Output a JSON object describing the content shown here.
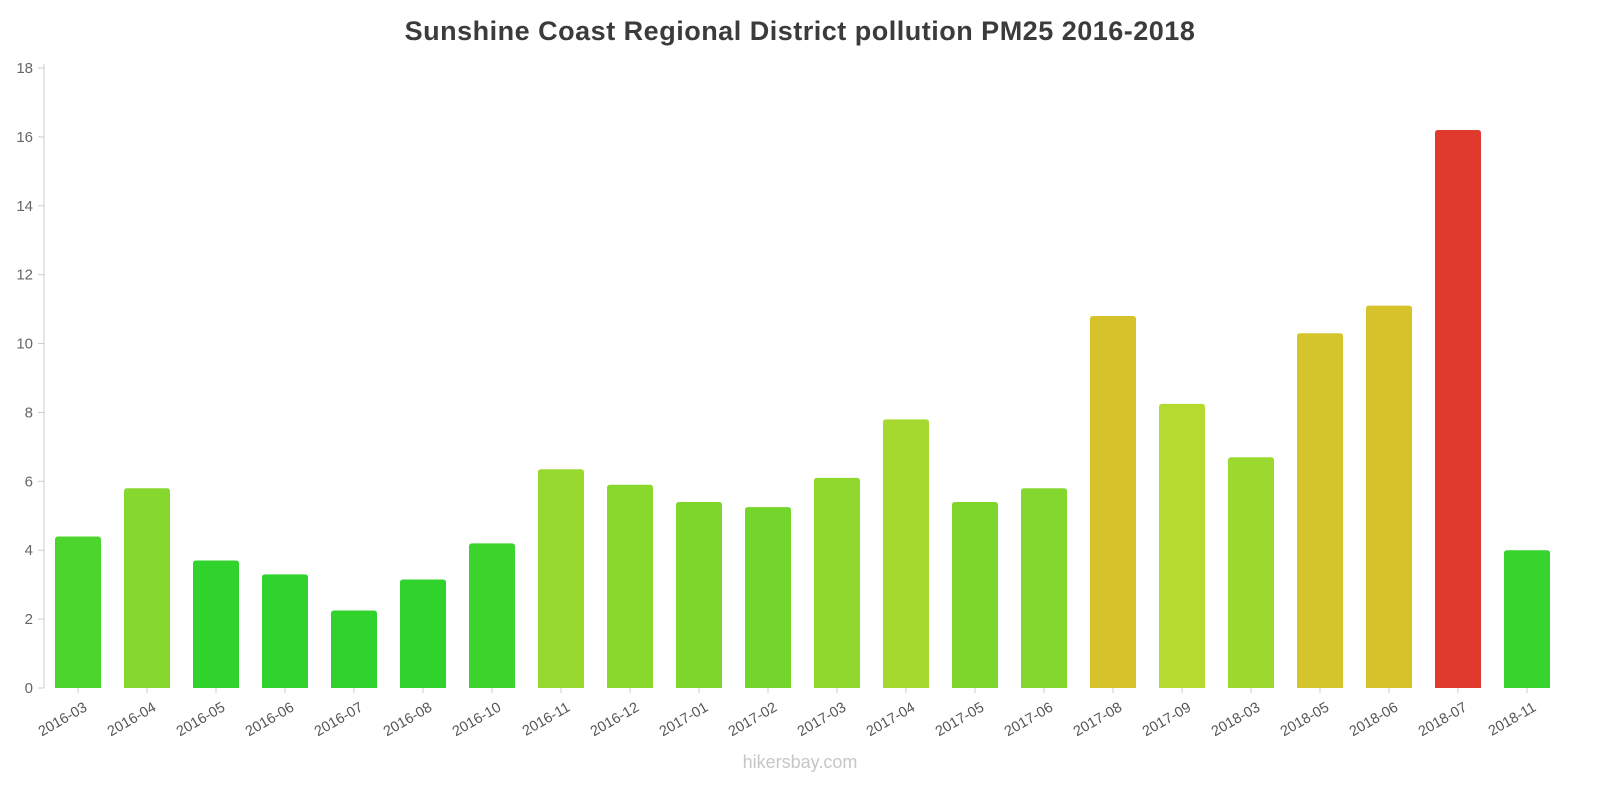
{
  "page": {
    "title": "Sunshine Coast Regional District pollution PM25 2016-2018",
    "footer": "hikersbay.com"
  },
  "chart_data": {
    "type": "bar",
    "title": "Sunshine Coast Regional District pollution PM25 2016-2018",
    "xlabel": "",
    "ylabel": "",
    "ylim": [
      0,
      18
    ],
    "yticks": [
      0,
      2,
      4,
      6,
      8,
      10,
      12,
      14,
      16,
      18
    ],
    "grid": false,
    "legend": "none",
    "x_label_rotation": -30,
    "categories": [
      "2016-03",
      "2016-04",
      "2016-05",
      "2016-06",
      "2016-07",
      "2016-08",
      "2016-10",
      "2016-11",
      "2016-12",
      "2017-01",
      "2017-02",
      "2017-03",
      "2017-04",
      "2017-05",
      "2017-06",
      "2017-08",
      "2017-09",
      "2018-03",
      "2018-05",
      "2018-06",
      "2018-07",
      "2018-11"
    ],
    "values": [
      4.4,
      5.8,
      3.7,
      3.3,
      2.25,
      3.15,
      4.2,
      6.35,
      5.9,
      5.4,
      5.25,
      6.1,
      7.8,
      5.4,
      5.8,
      10.8,
      8.25,
      6.7,
      10.3,
      11.1,
      16.2,
      4.0
    ],
    "bar_colors": [
      "#4cd52c",
      "#86d72e",
      "#2fd32b",
      "#2fd32b",
      "#2fd32b",
      "#2fd32b",
      "#3cd42c",
      "#97d92f",
      "#8ad72e",
      "#7ed62d",
      "#74d52d",
      "#90d82e",
      "#a6d930",
      "#7ed62d",
      "#84d72e",
      "#d6c22a",
      "#b5da30",
      "#9cd92f",
      "#d3c52b",
      "#d6c22a",
      "#e0392e",
      "#36d42c"
    ],
    "axis_color": "#cccccc",
    "tick_label_color": "#666666"
  }
}
